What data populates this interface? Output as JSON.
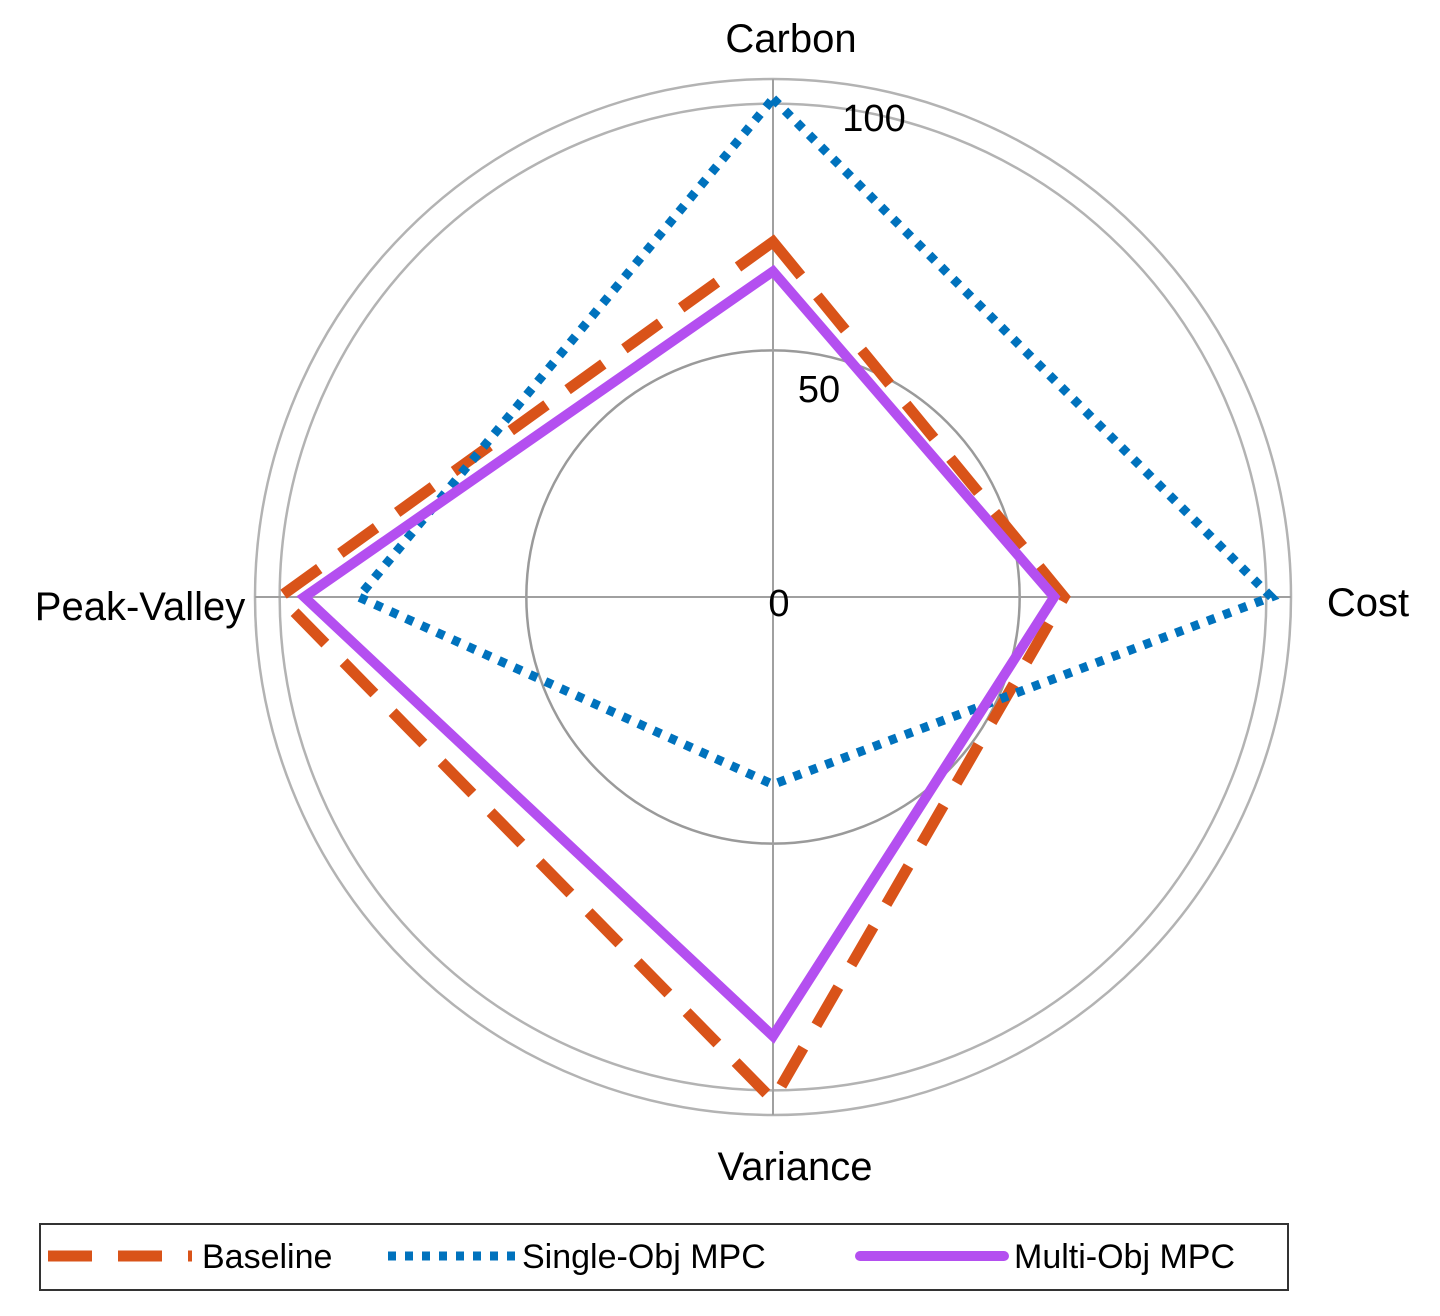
{
  "chart_data": {
    "type": "radar",
    "title": "",
    "axes": [
      "Carbon",
      "Cost",
      "Variance",
      "Peak-Valley"
    ],
    "rlim": [
      0,
      105
    ],
    "ring_ticks": [
      0,
      50,
      100
    ],
    "series": [
      {
        "name": "Baseline",
        "values": [
          72,
          59,
          102,
          100
        ],
        "color": "#D95319",
        "style": "dashed"
      },
      {
        "name": "Single-Obj MPC",
        "values": [
          101,
          101,
          38,
          84
        ],
        "color": "#0072BD",
        "style": "dotted"
      },
      {
        "name": "Multi-Obj MPC",
        "values": [
          66,
          57,
          89,
          95
        ],
        "color": "#B44FF0",
        "style": "solid"
      }
    ],
    "grid": true,
    "legend_position": "bottom"
  }
}
